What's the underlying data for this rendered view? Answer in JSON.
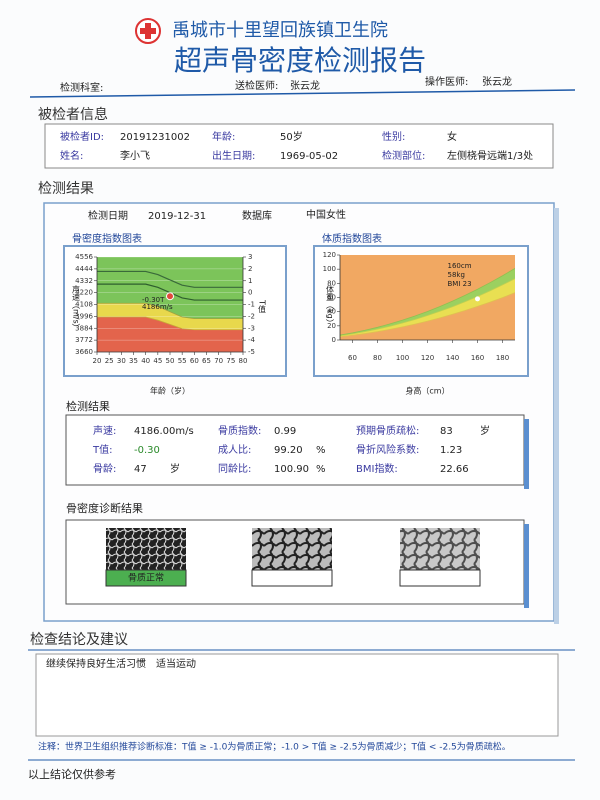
{
  "header": {
    "hospital": "禹城市十里望回族镇卫生院",
    "title": "超声骨密度检测报告",
    "department_label": "检测科室:",
    "referring_doctor_label": "送检医师:",
    "referring_doctor": "张云龙",
    "operator_label": "操作医师:",
    "operator": "张云龙"
  },
  "patient": {
    "title": "被检者信息",
    "fields": [
      [
        "被检者ID:",
        "20191231002"
      ],
      [
        "年龄:",
        "50岁"
      ],
      [
        "性别:",
        "女"
      ],
      [
        "姓名:",
        "李小飞"
      ],
      [
        "出生日期:",
        "1969-05-02"
      ],
      [
        "检测部位:",
        "左侧桡骨远端1/3处"
      ]
    ]
  },
  "results": {
    "title": "检测结果",
    "date_label": "检测日期",
    "date": "2019-12-31",
    "database_label": "数据库",
    "database": "中国女性"
  },
  "chart_data": [
    {
      "type": "line",
      "title": "骨密度指数图表",
      "x_label": "年龄（岁）",
      "y_label": "声速（m/s）",
      "y2_label": "T值",
      "x": [
        20,
        25,
        30,
        35,
        40,
        45,
        50,
        55,
        60,
        65,
        70,
        75,
        80
      ],
      "xlim": [
        20,
        80
      ],
      "xticks": [
        20,
        25,
        30,
        35,
        40,
        45,
        50,
        55,
        60,
        65,
        70,
        75,
        80
      ],
      "ylim": [
        3660,
        4556
      ],
      "yticks": [
        3660,
        3772,
        3884,
        3996,
        4108,
        4220,
        4332,
        4444,
        4556
      ],
      "y2lim": [
        -5,
        3
      ],
      "y2ticks": [
        3,
        2,
        1,
        0,
        -1,
        -2,
        -3,
        -4,
        -5
      ],
      "grid": true,
      "zone_colors": [
        "#e3644c",
        "#e8d84c",
        "#7cc45a"
      ],
      "series": [
        {
          "role": "boundary",
          "color": "#c9a63a",
          "values": [
            3990,
            3990,
            3990,
            3990,
            3990,
            3960,
            3920,
            3880,
            3870,
            3870,
            3870,
            3870,
            3870
          ]
        },
        {
          "role": "boundary",
          "color": "#a0a040",
          "values": [
            4120,
            4120,
            4120,
            4120,
            4120,
            4090,
            4040,
            3990,
            3975,
            3975,
            3975,
            3975,
            3975
          ]
        },
        {
          "role": "line",
          "color": "#2e5e2e",
          "values": [
            4300,
            4300,
            4300,
            4300,
            4300,
            4270,
            4220,
            4170,
            4150,
            4150,
            4150,
            4150,
            4150
          ]
        },
        {
          "role": "line",
          "color": "#3a6a3a",
          "values": [
            4420,
            4420,
            4420,
            4420,
            4420,
            4390,
            4340,
            4290,
            4270,
            4270,
            4270,
            4270,
            4270
          ]
        }
      ],
      "marker": {
        "x": 50,
        "y": 4186,
        "color": "#e04a3a",
        "labels": [
          "-0.30T",
          "4186m/s"
        ]
      }
    },
    {
      "type": "line",
      "title": "体质指数图表",
      "x_label": "身高（cm）",
      "y_label": "体重（kg）",
      "x": [
        50,
        60,
        70,
        80,
        90,
        100,
        110,
        120,
        130,
        140,
        150,
        160,
        170,
        180,
        190
      ],
      "xlim": [
        50,
        190
      ],
      "xticks": [
        60,
        80,
        100,
        120,
        140,
        160,
        180
      ],
      "ylim": [
        0,
        120
      ],
      "yticks": [
        0,
        20,
        40,
        60,
        80,
        100,
        120
      ],
      "grid": false,
      "zone_colors": [
        "#f1a862",
        "#e9df52",
        "#9bd060",
        "#f1a862"
      ],
      "series": [
        {
          "role": "boundary",
          "color": "#e0c050",
          "values": [
            4.6,
            6.7,
            9.1,
            11.8,
            15.0,
            18.5,
            22.4,
            26.6,
            31.3,
            36.3,
            41.6,
            47.4,
            53.5,
            59.9,
            66.8
          ]
        },
        {
          "role": "boundary",
          "color": "#c0d050",
          "values": [
            6.0,
            8.6,
            11.8,
            15.4,
            19.4,
            24.0,
            29.0,
            34.6,
            40.6,
            47.0,
            54.0,
            61.4,
            69.4,
            77.8,
            86.6
          ]
        },
        {
          "role": "boundary",
          "color": "#90c050",
          "values": [
            7.0,
            10.1,
            13.7,
            17.9,
            22.7,
            28.0,
            33.9,
            40.3,
            47.3,
            54.9,
            63.0,
            71.7,
            80.9,
            90.7,
            101.1
          ]
        }
      ],
      "marker": {
        "x": 160,
        "y": 58,
        "color": "#ffffff",
        "labels": [
          "160cm",
          "58kg",
          "BMI 23"
        ]
      }
    }
  ],
  "measurements": {
    "title": "检测结果",
    "columns": [
      [
        [
          "声速:",
          "4186.00m/s"
        ],
        [
          "T值:",
          "-0.30"
        ],
        [
          "骨龄:",
          "47",
          "岁"
        ]
      ],
      [
        [
          "骨质指数:",
          "0.99"
        ],
        [
          "成人比:",
          "99.20",
          "%"
        ],
        [
          "同龄比:",
          "100.90",
          "%"
        ]
      ],
      [
        [
          "预期骨质疏松:",
          "83",
          "岁"
        ],
        [
          "骨折风险系数:",
          "1.23"
        ],
        [
          "BMI指数:",
          "22.66"
        ]
      ]
    ]
  },
  "diagnosis": {
    "title": "骨密度诊断结果",
    "result": "骨质正常"
  },
  "conclusion": {
    "title": "检查结论及建议",
    "text": "继续保持良好生活习惯　适当运动",
    "note": "注释：世界卫生组织推荐诊断标准：T值 ≥ -1.0为骨质正常；-1.0 > T值 ≥ -2.5为骨质减少；T值 < -2.5为骨质疏松。",
    "footer": "以上结论仅供参考"
  }
}
